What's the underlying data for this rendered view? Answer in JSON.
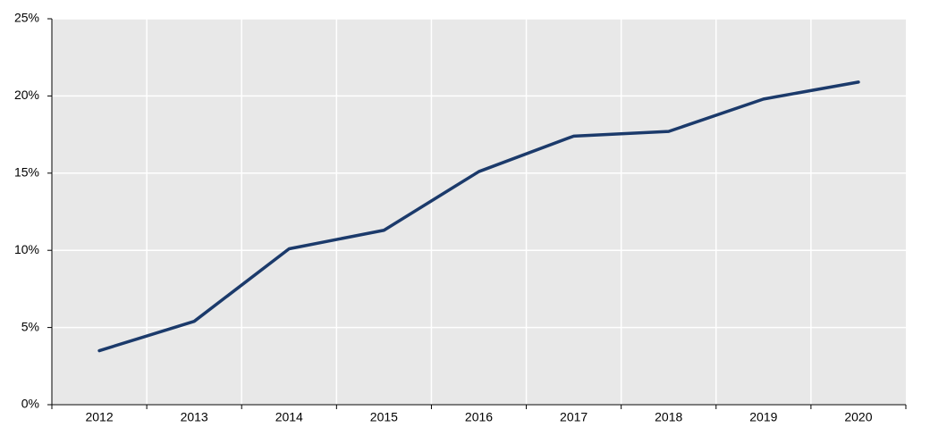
{
  "chart_data": {
    "type": "line",
    "categories": [
      "2012",
      "2013",
      "2014",
      "2015",
      "2016",
      "2017",
      "2018",
      "2019",
      "2020"
    ],
    "values": [
      3.5,
      5.4,
      10.1,
      11.3,
      15.1,
      17.4,
      17.7,
      19.8,
      20.9
    ],
    "color": "#1b3a6b",
    "ylim": [
      0,
      25
    ],
    "yticks": [
      {
        "value": 0,
        "label": "0%"
      },
      {
        "value": 5,
        "label": "5%"
      },
      {
        "value": 10,
        "label": "10%"
      },
      {
        "value": 15,
        "label": "15%"
      },
      {
        "value": 20,
        "label": "20%"
      },
      {
        "value": 25,
        "label": "25%"
      }
    ],
    "grid": true
  }
}
